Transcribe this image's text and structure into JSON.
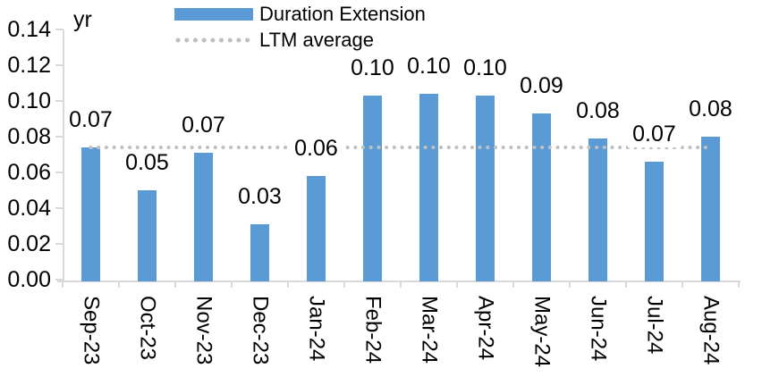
{
  "colors": {
    "bar": "#5B9BD5",
    "ltm_line": "#BFBFBF",
    "axis": "#D9D9D9",
    "text": "#000000",
    "background": "#FFFFFF"
  },
  "legend": {
    "items": [
      {
        "label": "Duration Extension",
        "swatch": "bar-swatch"
      },
      {
        "label": "LTM average",
        "swatch": "dotted-line-swatch"
      }
    ]
  },
  "chart_data": {
    "type": "bar",
    "title": "",
    "unit_label": "yr",
    "categories": [
      "Sep-23",
      "Oct-23",
      "Nov-23",
      "Dec-23",
      "Jan-24",
      "Feb-24",
      "Mar-24",
      "Apr-24",
      "May-24",
      "Jun-24",
      "Jul-24",
      "Aug-24"
    ],
    "series": [
      {
        "name": "Duration Extension",
        "type": "bar",
        "color": "#5B9BD5",
        "values": [
          0.074,
          0.05,
          0.071,
          0.031,
          0.058,
          0.103,
          0.104,
          0.103,
          0.093,
          0.079,
          0.066,
          0.08
        ],
        "data_labels": [
          "0.07",
          "0.05",
          "0.07",
          "0.03",
          "0.06",
          "0.10",
          "0.10",
          "0.10",
          "0.09",
          "0.08",
          "0.07",
          "0.08"
        ]
      },
      {
        "name": "LTM average",
        "type": "line",
        "style": "dotted",
        "color": "#BFBFBF",
        "value": 0.074
      }
    ],
    "ylim": [
      0,
      0.14
    ],
    "ytick_labels": [
      "0.00",
      "0.02",
      "0.04",
      "0.06",
      "0.08",
      "0.10",
      "0.12",
      "0.14"
    ],
    "grid": false,
    "legend_position": "top-center"
  }
}
